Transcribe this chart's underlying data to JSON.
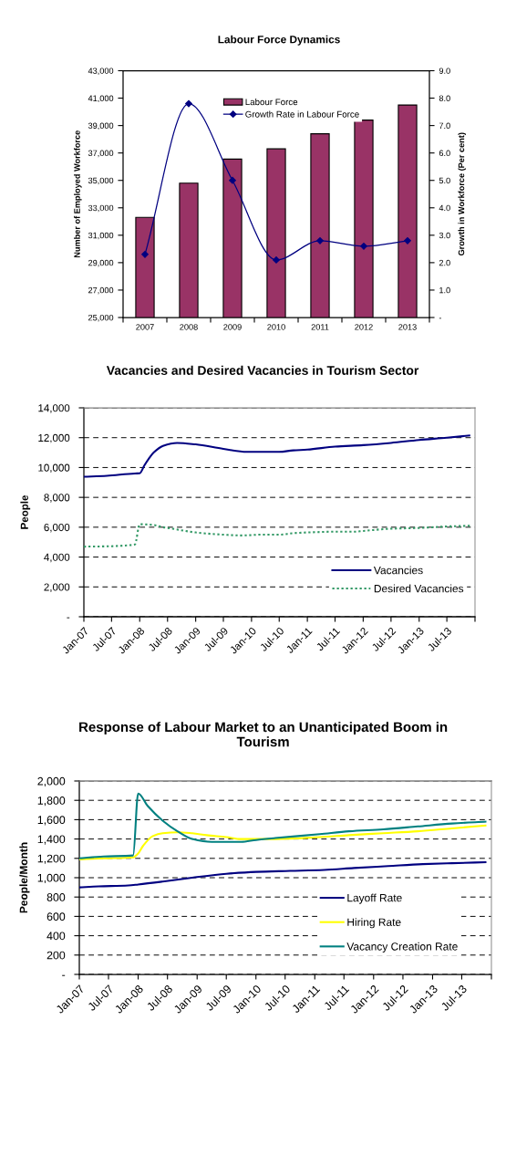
{
  "chart_data": [
    {
      "type": "bar",
      "title": "Labour Force Dynamics",
      "ylabel": "Number of Employed Workforce",
      "y2label": "Growth in Workforce (Per cent)",
      "categories": [
        "2007",
        "2008",
        "2009",
        "2010",
        "2011",
        "2012",
        "2013"
      ],
      "series": [
        {
          "name": "Labour Force",
          "type": "bar",
          "color": "#993366",
          "values": [
            32300,
            34800,
            36550,
            37300,
            38400,
            39400,
            40500
          ]
        },
        {
          "name": "Growth Rate in Labour Force",
          "type": "line",
          "axis": "y2",
          "color": "#000080",
          "marker": "diamond",
          "values": [
            2.3,
            7.8,
            5.0,
            2.1,
            2.8,
            2.6,
            2.8
          ]
        }
      ],
      "ylim": [
        25000,
        43000
      ],
      "yticks": [
        {
          "value": 25000,
          "label": "25,000"
        },
        {
          "value": 27000,
          "label": "27,000"
        },
        {
          "value": 29000,
          "label": "29,000"
        },
        {
          "value": 31000,
          "label": "31,000"
        },
        {
          "value": 33000,
          "label": "33,000"
        },
        {
          "value": 35000,
          "label": "35,000"
        },
        {
          "value": 37000,
          "label": "37,000"
        },
        {
          "value": 39000,
          "label": "39,000"
        },
        {
          "value": 41000,
          "label": "41,000"
        },
        {
          "value": 43000,
          "label": "43,000"
        }
      ],
      "y2lim": [
        0,
        9
      ],
      "y2ticks": [
        {
          "value": 0,
          "label": "-"
        },
        {
          "value": 1,
          "label": "1.0"
        },
        {
          "value": 2,
          "label": "2.0"
        },
        {
          "value": 3,
          "label": "3.0"
        },
        {
          "value": 4,
          "label": "4.0"
        },
        {
          "value": 5,
          "label": "5.0"
        },
        {
          "value": 6,
          "label": "6.0"
        },
        {
          "value": 7,
          "label": "7.0"
        },
        {
          "value": 8,
          "label": "8.0"
        },
        {
          "value": 9,
          "label": "9.0"
        }
      ],
      "legend": "top"
    },
    {
      "type": "line",
      "title": "Vacancies and Desired Vacancies in Tourism Sector",
      "ylabel": "People",
      "series": [
        {
          "name": "Vacancies",
          "color": "#000080",
          "x": [
            "2007-01",
            "2007-06",
            "2007-12",
            "2008-01",
            "2008-02",
            "2008-03",
            "2008-04",
            "2008-06",
            "2008-09",
            "2009-01",
            "2009-07",
            "2009-12",
            "2010-07",
            "2010-10",
            "2011-01",
            "2011-07",
            "2012-01",
            "2012-07",
            "2013-01",
            "2013-07",
            "2013-12"
          ],
          "values": [
            9380,
            9450,
            9600,
            9610,
            10150,
            10600,
            11000,
            11450,
            11650,
            11550,
            11250,
            11050,
            11050,
            11150,
            11200,
            11400,
            11500,
            11650,
            11850,
            12000,
            12150
          ]
        },
        {
          "name": "Desired Vacancies",
          "color": "#339966",
          "line_style": "dotted",
          "x": [
            "2007-01",
            "2007-06",
            "2007-11",
            "2007-12",
            "2008-01",
            "2008-04",
            "2008-06",
            "2008-08",
            "2009-01",
            "2009-07",
            "2009-11",
            "2010-03",
            "2010-07",
            "2010-10",
            "2011-01",
            "2011-07",
            "2011-11",
            "2012-01",
            "2012-07",
            "2013-01",
            "2013-07",
            "2013-12"
          ],
          "values": [
            4700,
            4720,
            4800,
            4850,
            6200,
            6150,
            6000,
            5900,
            5650,
            5500,
            5450,
            5500,
            5500,
            5600,
            5650,
            5700,
            5700,
            5750,
            5900,
            5950,
            6050,
            6100
          ]
        }
      ],
      "xlim": [
        "2007-01",
        "2014-01"
      ],
      "xticks": [
        {
          "value": "2007-01",
          "label": "Jan-07"
        },
        {
          "value": "2007-07",
          "label": "Jul-07"
        },
        {
          "value": "2008-01",
          "label": "Jan-08"
        },
        {
          "value": "2008-07",
          "label": "Jul-08"
        },
        {
          "value": "2009-01",
          "label": "Jan-09"
        },
        {
          "value": "2009-07",
          "label": "Jul-09"
        },
        {
          "value": "2010-01",
          "label": "Jan-10"
        },
        {
          "value": "2010-07",
          "label": "Jul-10"
        },
        {
          "value": "2011-01",
          "label": "Jan-11"
        },
        {
          "value": "2011-07",
          "label": "Jul-11"
        },
        {
          "value": "2012-01",
          "label": "Jan-12"
        },
        {
          "value": "2012-07",
          "label": "Jul-12"
        },
        {
          "value": "2013-01",
          "label": "Jan-13"
        },
        {
          "value": "2013-07",
          "label": "Jul-13"
        },
        {
          "value": "2014-01",
          "label": null
        }
      ],
      "ylim": [
        0,
        14000
      ],
      "yticks": [
        {
          "value": 0,
          "label": "-"
        },
        {
          "value": 2000,
          "label": "2,000"
        },
        {
          "value": 4000,
          "label": "4,000"
        },
        {
          "value": 6000,
          "label": "6,000"
        },
        {
          "value": 8000,
          "label": "8,000"
        },
        {
          "value": 10000,
          "label": "10,000"
        },
        {
          "value": 12000,
          "label": "12,000"
        },
        {
          "value": 14000,
          "label": "14,000"
        }
      ],
      "grid": "y",
      "legend": "bottom right"
    },
    {
      "type": "line",
      "title": "Response of Labour Market to an Unanticipated Boom in Tourism",
      "ylabel": "People/Month",
      "series": [
        {
          "name": "Layoff Rate",
          "color": "#000080",
          "x": [
            "2007-01",
            "2007-05",
            "2007-11",
            "2008-01",
            "2008-06",
            "2008-12",
            "2009-07",
            "2010-01",
            "2010-08",
            "2011-03",
            "2011-09",
            "2012-04",
            "2012-11",
            "2013-05",
            "2013-12"
          ],
          "values": [
            900,
            910,
            920,
            930,
            960,
            1000,
            1040,
            1060,
            1070,
            1080,
            1100,
            1120,
            1140,
            1150,
            1160
          ]
        },
        {
          "name": "Hiring Rate",
          "color": "#ffff00",
          "x": [
            "2007-01",
            "2007-06",
            "2007-12",
            "2008-01",
            "2008-02",
            "2008-04",
            "2008-06",
            "2008-09",
            "2008-12",
            "2009-03",
            "2009-07",
            "2009-10",
            "2010-01",
            "2010-05",
            "2011-02",
            "2011-08",
            "2012-03",
            "2012-10",
            "2013-05",
            "2013-12"
          ],
          "values": [
            1190,
            1200,
            1210,
            1250,
            1330,
            1430,
            1460,
            1470,
            1460,
            1440,
            1420,
            1400,
            1400,
            1400,
            1420,
            1440,
            1460,
            1480,
            1510,
            1540
          ]
        },
        {
          "name": "Vacancy Creation Rate",
          "color": "#008080",
          "x": [
            "2007-01",
            "2007-06",
            "2007-12",
            "2008-01",
            "2008-03",
            "2008-06",
            "2008-09",
            "2008-12",
            "2009-04",
            "2009-07",
            "2009-10",
            "2010-01",
            "2010-05",
            "2011-02",
            "2011-08",
            "2012-03",
            "2012-10",
            "2013-05",
            "2013-12"
          ],
          "values": [
            1200,
            1220,
            1230,
            1870,
            1740,
            1590,
            1480,
            1400,
            1370,
            1370,
            1370,
            1390,
            1410,
            1450,
            1480,
            1500,
            1530,
            1560,
            1580
          ]
        }
      ],
      "xlim": [
        "2007-01",
        "2014-01"
      ],
      "xticks": [
        {
          "value": "2007-01",
          "label": "Jan-07"
        },
        {
          "value": "2007-07",
          "label": "Jul-07"
        },
        {
          "value": "2008-01",
          "label": "Jan-08"
        },
        {
          "value": "2008-07",
          "label": "Jul-08"
        },
        {
          "value": "2009-01",
          "label": "Jan-09"
        },
        {
          "value": "2009-07",
          "label": "Jul-09"
        },
        {
          "value": "2010-01",
          "label": "Jan-10"
        },
        {
          "value": "2010-07",
          "label": "Jul-10"
        },
        {
          "value": "2011-01",
          "label": "Jan-11"
        },
        {
          "value": "2011-07",
          "label": "Jul-11"
        },
        {
          "value": "2012-01",
          "label": "Jan-12"
        },
        {
          "value": "2012-07",
          "label": "Jul-12"
        },
        {
          "value": "2013-01",
          "label": "Jan-13"
        },
        {
          "value": "2013-07",
          "label": "Jul-13"
        },
        {
          "value": "2014-01",
          "label": null
        }
      ],
      "ylim": [
        0,
        2000
      ],
      "yticks": [
        {
          "value": 0,
          "label": "-"
        },
        200,
        400,
        600,
        800,
        {
          "value": 1000,
          "label": "1,000"
        },
        {
          "value": 1200,
          "label": "1,200"
        },
        {
          "value": 1400,
          "label": "1,400"
        },
        {
          "value": 1600,
          "label": "1,600"
        },
        {
          "value": 1800,
          "label": "1,800"
        },
        {
          "value": 2000,
          "label": "2,000"
        }
      ],
      "grid": "y",
      "legend": "bottom right"
    }
  ]
}
